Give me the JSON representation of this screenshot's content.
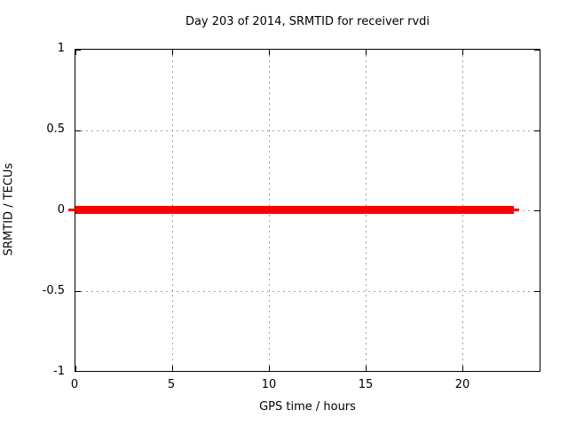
{
  "chart_data": {
    "type": "line",
    "title": "Day 203 of 2014, SRMTID for receiver rvdi",
    "xlabel": "GPS time / hours",
    "ylabel": "SRMTID / TECUs",
    "xlim": [
      0,
      24
    ],
    "ylim": [
      -1,
      1
    ],
    "x_ticks": [
      0,
      5,
      10,
      15,
      20
    ],
    "y_ticks": [
      1,
      0.5,
      0,
      -0.5,
      -1
    ],
    "x_tick_labels": [
      "0",
      "5",
      "10",
      "15",
      "20"
    ],
    "y_tick_labels": [
      "1",
      "0.5",
      "0",
      "-0.5",
      "-1"
    ],
    "grid": "dashed major gridlines on",
    "legend": "none",
    "series": [
      {
        "name": "SRMTID",
        "color": "#ff0000",
        "style": "thick solid horizontal line",
        "x": [
          0,
          22.8
        ],
        "y": [
          0,
          0
        ]
      }
    ],
    "colors": {
      "series": "#ff0000",
      "grid": "#a0a0a0",
      "axis": "#000000",
      "text": "#000000",
      "background": "#ffffff"
    }
  }
}
